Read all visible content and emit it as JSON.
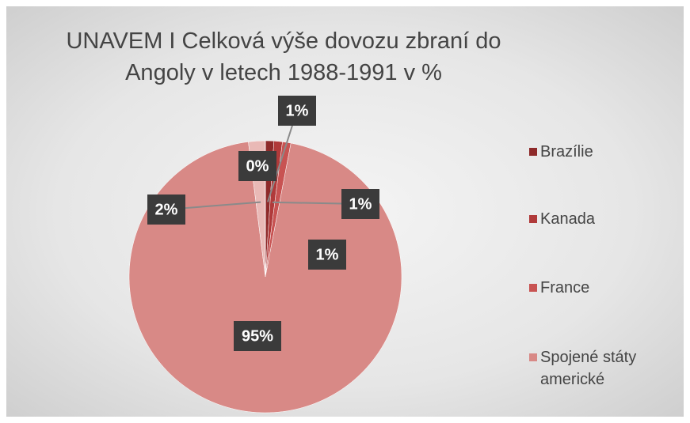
{
  "chart_data": {
    "type": "pie",
    "title": "UNAVEM I Celková výše dovozu zbraní do Angoly v letech 1988-1991 v %",
    "categories": [
      "Brazílie",
      "Kanada",
      "France",
      "Spojené státy americké",
      null,
      null
    ],
    "values": [
      1,
      1,
      1,
      95,
      2,
      0
    ],
    "value_labels": [
      "1%",
      "1%",
      "1%",
      "95%",
      "2%",
      "0%"
    ],
    "colors": [
      "#8e2a2a",
      "#b03a3a",
      "#c85352",
      "#d88986",
      "#e9b9b6",
      "#f2d6d4"
    ],
    "legend": "right"
  }
}
